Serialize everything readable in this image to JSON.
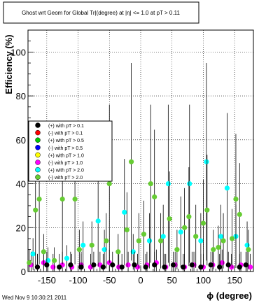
{
  "chart_data": {
    "type": "scatter",
    "title": "Ghost wrt Geom for Global Tr|(degree) at |η| <= 1.0 at pT > 0.11",
    "xlabel": "ϕ (degree)",
    "ylabel": "Efficiency (%)",
    "xlim": [
      -180,
      180
    ],
    "ylim": [
      0,
      110
    ],
    "x_ticks": [
      -150,
      -100,
      -50,
      0,
      50,
      100,
      150
    ],
    "y_ticks": [
      0,
      20,
      40,
      60,
      80,
      100
    ],
    "grid": true,
    "legend_position": "left",
    "legend": [
      {
        "label": "(+) with pT > 0.1",
        "color": "#000000"
      },
      {
        "label": "(-) with pT > 0.1",
        "color": "#ff0000"
      },
      {
        "label": "(+) with pT > 0.5",
        "color": "#00cc00"
      },
      {
        "label": "(-) with pT > 0.5",
        "color": "#0000ff"
      },
      {
        "label": "(+) with pT > 1.0",
        "color": "#ffff00"
      },
      {
        "label": "(-) with pT > 1.0",
        "color": "#ff00ff"
      },
      {
        "label": "(+) with pT > 2.0",
        "color": "#00ffff"
      },
      {
        "label": "(-) with pT > 2.0",
        "color": "#66cc33"
      }
    ],
    "series": [
      {
        "name": "(-) with pT > 1.0",
        "color": "#ff00ff",
        "points": [
          [
            -175,
            3
          ],
          [
            -165,
            2
          ],
          [
            -155,
            4
          ],
          [
            -140,
            2
          ],
          [
            -125,
            3
          ],
          [
            -110,
            2
          ],
          [
            -95,
            3
          ],
          [
            -80,
            2
          ],
          [
            -65,
            3
          ],
          [
            -50,
            4
          ],
          [
            -35,
            2
          ],
          [
            -20,
            3
          ],
          [
            -5,
            2
          ],
          [
            10,
            3
          ],
          [
            25,
            4
          ],
          [
            40,
            2
          ],
          [
            55,
            3
          ],
          [
            70,
            2
          ],
          [
            85,
            3
          ],
          [
            100,
            2
          ],
          [
            115,
            3
          ],
          [
            130,
            4
          ],
          [
            145,
            2
          ],
          [
            160,
            3
          ],
          [
            175,
            2
          ]
        ]
      },
      {
        "name": "(+) with pT > 2.0",
        "color": "#00ffff",
        "points": [
          [
            -172,
            8
          ],
          [
            -148,
            5
          ],
          [
            -118,
            6
          ],
          [
            -92,
            12
          ],
          [
            -68,
            23
          ],
          [
            -58,
            10
          ],
          [
            -26,
            27
          ],
          [
            -12,
            9
          ],
          [
            14,
            14
          ],
          [
            36,
            16
          ],
          [
            44,
            40
          ],
          [
            64,
            18
          ],
          [
            78,
            40
          ],
          [
            96,
            14
          ],
          [
            105,
            50
          ],
          [
            128,
            16
          ],
          [
            138,
            38
          ],
          [
            152,
            16
          ],
          [
            170,
            12
          ]
        ]
      },
      {
        "name": "(-) with pT > 2.0",
        "color": "#66cc33",
        "points": [
          [
            -178,
            4
          ],
          [
            -168,
            28
          ],
          [
            -162,
            33
          ],
          [
            -155,
            9
          ],
          [
            -138,
            5
          ],
          [
            -125,
            33
          ],
          [
            -105,
            33
          ],
          [
            -98,
            10
          ],
          [
            -78,
            12
          ],
          [
            -55,
            14
          ],
          [
            -50,
            40
          ],
          [
            -36,
            9
          ],
          [
            -22,
            19
          ],
          [
            -15,
            50
          ],
          [
            -3,
            14
          ],
          [
            5,
            17
          ],
          [
            16,
            40
          ],
          [
            22,
            34
          ],
          [
            32,
            14
          ],
          [
            46,
            24
          ],
          [
            58,
            10
          ],
          [
            70,
            20
          ],
          [
            77,
            25
          ],
          [
            88,
            16
          ],
          [
            100,
            22
          ],
          [
            106,
            28
          ],
          [
            116,
            10
          ],
          [
            124,
            11
          ],
          [
            132,
            14
          ],
          [
            146,
            15
          ],
          [
            152,
            33
          ],
          [
            158,
            26
          ],
          [
            172,
            10
          ]
        ]
      },
      {
        "name": "(+) with pT > 0.1",
        "color": "#000000",
        "points": [
          [
            -165,
            2
          ],
          [
            -150,
            3
          ],
          [
            -130,
            2
          ],
          [
            -112,
            3
          ],
          [
            -95,
            2
          ],
          [
            -75,
            3
          ],
          [
            -60,
            2
          ],
          [
            -45,
            3
          ],
          [
            -30,
            2
          ],
          [
            -10,
            3
          ],
          [
            8,
            2
          ],
          [
            22,
            3
          ],
          [
            38,
            2
          ],
          [
            52,
            3
          ],
          [
            68,
            2
          ],
          [
            82,
            3
          ],
          [
            96,
            2
          ],
          [
            112,
            3
          ],
          [
            126,
            2
          ],
          [
            140,
            3
          ],
          [
            158,
            2
          ],
          [
            168,
            3
          ]
        ]
      }
    ]
  },
  "footer": {
    "timestamp": "Wed Nov  9 10:30:21 2011"
  }
}
